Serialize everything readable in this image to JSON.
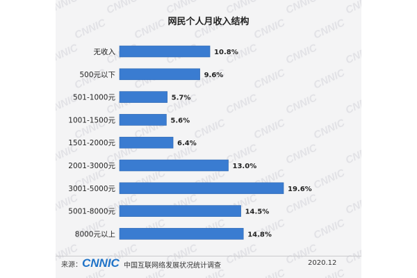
{
  "colors": {
    "bar": "#3a7cd1",
    "bar_edge": "#2d66b0",
    "panel": "#f4f4f5",
    "logo": "#1f73c8"
  },
  "chart_data": {
    "type": "bar",
    "orientation": "horizontal",
    "title": "网民个人月收入结构",
    "categories": [
      "无收入",
      "500元以下",
      "501-1000元",
      "1001-1500元",
      "1501-2000元",
      "2001-3000元",
      "3001-5000元",
      "5001-8000元",
      "8000元以上"
    ],
    "values": [
      10.8,
      9.6,
      5.7,
      5.6,
      6.4,
      13.0,
      19.6,
      14.5,
      14.8
    ],
    "value_labels": [
      "10.8%",
      "9.6%",
      "5.7%",
      "5.6%",
      "6.4%",
      "13.0%",
      "19.6%",
      "14.5%",
      "14.8%"
    ],
    "unit": "%",
    "grid": false,
    "legend": "none"
  },
  "footer": {
    "source_label": "来源：",
    "logo_text": "CNNIC",
    "org": "中国互联网络发展状况统计调查",
    "date": "2020.12"
  },
  "watermark": {
    "text": "CNNIC"
  }
}
